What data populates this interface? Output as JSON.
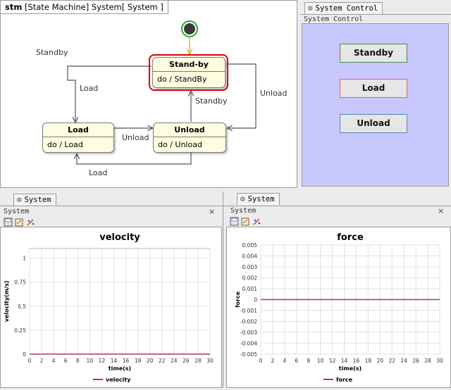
{
  "diagram": {
    "tab_kind": "stm",
    "tab_title": "[State Machine] System[ System ]",
    "states": [
      {
        "name": "Stand-by",
        "activity": "do / StandBy",
        "active": true
      },
      {
        "name": "Load",
        "activity": "do / Load",
        "active": false
      },
      {
        "name": "Unload",
        "activity": "do / Unload",
        "active": false
      }
    ],
    "transitions": {
      "initial_to_standby": "Standby",
      "standby_to_load": "Load",
      "standby_to_unload": "Unload",
      "load_to_unload": "Unload",
      "unload_to_load": "Load",
      "unload_to_standby": "Standby"
    },
    "colors": {
      "active_border": "#e00000",
      "initial_ring": "#22aa22",
      "initial_arrow": "#f0a020",
      "state_fill": "#fffde0"
    }
  },
  "control": {
    "tab_label": "System Control",
    "header": "System Control",
    "buttons": [
      {
        "label": "Standby",
        "border": "#4a8a4a"
      },
      {
        "label": "Load",
        "border": "#e06060"
      },
      {
        "label": "Unload",
        "border": "#4a8aaa"
      }
    ],
    "background": "#c8c8ff"
  },
  "plots": [
    {
      "tab_label": "System",
      "header": "System",
      "close": "×",
      "icons": [
        "save-icon",
        "export-icon",
        "sparkle-icon"
      ],
      "chart_data": {
        "type": "line",
        "title": "velocity",
        "xlabel": "time(s)",
        "ylabel": "velocity(m/s)",
        "xlim": [
          0,
          30
        ],
        "ylim": [
          0,
          1.1
        ],
        "x_ticks": [
          "0",
          "2",
          "4",
          "6",
          "8",
          "10",
          "12",
          "14",
          "16",
          "18",
          "20",
          "22",
          "24",
          "26",
          "28",
          "30"
        ],
        "y_ticks": [
          "0",
          "0.25",
          "0.5",
          "0.75",
          "1"
        ],
        "series": [
          {
            "name": "velocity",
            "color": "#c03050",
            "x": [
              0,
              30
            ],
            "y": [
              0,
              0
            ]
          }
        ],
        "legend": "bottom",
        "grid": true
      }
    },
    {
      "tab_label": "System",
      "header": "System",
      "close": "×",
      "icons": [
        "save-icon",
        "export-icon",
        "sparkle-icon"
      ],
      "chart_data": {
        "type": "line",
        "title": "force",
        "xlabel": "time(s)",
        "ylabel": "force",
        "xlim": [
          0,
          30
        ],
        "ylim": [
          -0.005,
          0.005
        ],
        "x_ticks": [
          "0",
          "2",
          "4",
          "6",
          "8",
          "10",
          "12",
          "14",
          "16",
          "18",
          "20",
          "22",
          "24",
          "26",
          "28",
          "30"
        ],
        "y_ticks": [
          "0.005",
          "0.004",
          "0.003",
          "0.002",
          "0.001",
          "0",
          "-0.001",
          "-0.002",
          "-0.003",
          "-0.004",
          "-0.005"
        ],
        "series": [
          {
            "name": "force",
            "color": "#c03050",
            "x": [
              0,
              30
            ],
            "y": [
              0,
              0
            ]
          }
        ],
        "legend": "bottom",
        "grid": true
      }
    }
  ]
}
